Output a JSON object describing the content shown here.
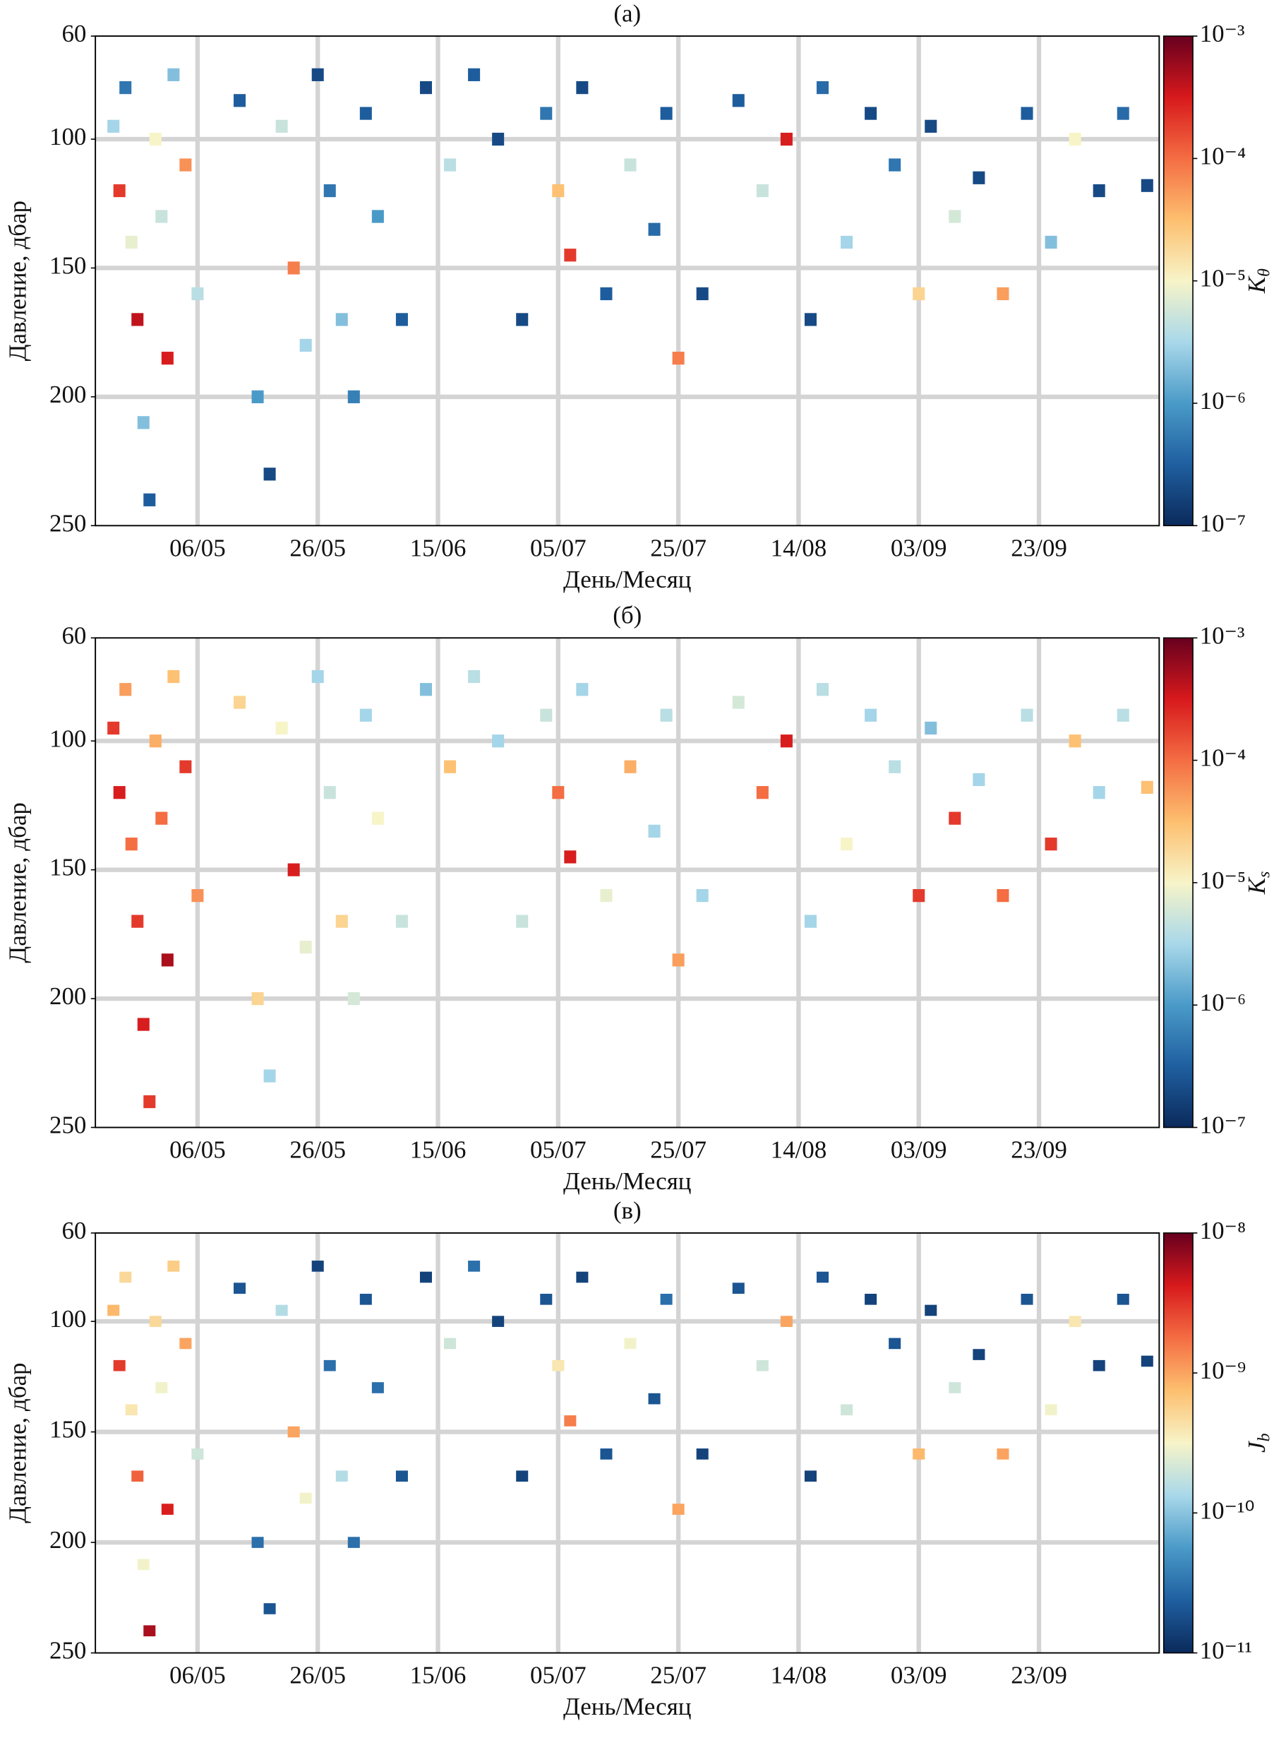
{
  "chart_data": [
    {
      "type": "heatmap",
      "title": "(а)",
      "x_label": "День/Месяц",
      "y_label": "Давление, дбар",
      "colorbar_label": "K",
      "colorbar_label_sub": "θ",
      "colorscale": "log",
      "colormap": [
        "#0b2a5b",
        "#1f5fa0",
        "#4a9ac8",
        "#a9d8ea",
        "#f7f4c8",
        "#fdbf6f",
        "#f46d43",
        "#d7191c",
        "#67001f"
      ],
      "xlim": [
        109,
        286
      ],
      "ylim": [
        60,
        250
      ],
      "y_inverted": true,
      "grid": true,
      "xticks": [
        {
          "value": 126,
          "label": "06/05"
        },
        {
          "value": 146,
          "label": "26/05"
        },
        {
          "value": 166,
          "label": "15/06"
        },
        {
          "value": 186,
          "label": "05/07"
        },
        {
          "value": 206,
          "label": "25/07"
        },
        {
          "value": 226,
          "label": "14/08"
        },
        {
          "value": 246,
          "label": "03/09"
        },
        {
          "value": 266,
          "label": "23/09"
        }
      ],
      "yticks": [
        60,
        100,
        150,
        200,
        250
      ],
      "clim": [
        1e-07,
        0.001
      ],
      "cticks": [
        {
          "value": 0.001,
          "label": "10⁻³"
        },
        {
          "value": 0.0001,
          "label": "10⁻⁴"
        },
        {
          "value": 1e-05,
          "label": "10⁻⁵"
        },
        {
          "value": 1e-06,
          "label": "10⁻⁶"
        },
        {
          "value": 1e-07,
          "label": "10⁻⁷"
        }
      ],
      "x": [
        112,
        113,
        114,
        115,
        116,
        117,
        118,
        119,
        120,
        121,
        122,
        124,
        126,
        133,
        136,
        138,
        140,
        142,
        144,
        146,
        148,
        150,
        152,
        154,
        156,
        160,
        164,
        168,
        172,
        176,
        180,
        184,
        186,
        188,
        190,
        194,
        198,
        202,
        204,
        206,
        210,
        216,
        220,
        224,
        228,
        230,
        234,
        238,
        242,
        246,
        248,
        252,
        256,
        260,
        264,
        268,
        272,
        276,
        280,
        284
      ],
      "y": [
        95,
        120,
        80,
        140,
        170,
        210,
        240,
        100,
        130,
        185,
        75,
        110,
        160,
        85,
        200,
        230,
        95,
        150,
        180,
        75,
        120,
        170,
        200,
        90,
        130,
        170,
        80,
        110,
        75,
        100,
        170,
        90,
        120,
        145,
        80,
        160,
        110,
        135,
        90,
        185,
        160,
        85,
        120,
        100,
        170,
        80,
        140,
        90,
        110,
        160,
        95,
        130,
        115,
        160,
        90,
        140,
        100,
        120,
        90,
        118
      ],
      "values": [
        3e-06,
        0.0002,
        5e-07,
        8e-06,
        0.0004,
        2e-06,
        3e-07,
        1e-05,
        5e-06,
        0.0003,
        2e-06,
        6e-05,
        4e-06,
        3e-07,
        1e-06,
        2e-07,
        5e-06,
        8e-05,
        3e-06,
        2e-07,
        5e-07,
        2e-06,
        6e-07,
        3e-07,
        1e-06,
        3e-07,
        2e-07,
        4e-06,
        3e-07,
        2e-07,
        2e-07,
        5e-07,
        3e-05,
        0.0002,
        2e-07,
        3e-07,
        5e-06,
        4e-07,
        3e-07,
        8e-05,
        2e-07,
        3e-07,
        5e-06,
        0.0003,
        2e-07,
        4e-07,
        3e-06,
        2e-07,
        5e-07,
        2e-05,
        2e-07,
        6e-06,
        2e-07,
        5e-05,
        3e-07,
        2e-06,
        1e-05,
        2e-07,
        4e-07,
        2e-07
      ]
    },
    {
      "type": "heatmap",
      "title": "(б)",
      "x_label": "День/Месяц",
      "y_label": "Давление, дбар",
      "colorbar_label": "K",
      "colorbar_label_sub": "s",
      "colorscale": "log",
      "colormap": [
        "#0b2a5b",
        "#1f5fa0",
        "#4a9ac8",
        "#a9d8ea",
        "#f7f4c8",
        "#fdbf6f",
        "#f46d43",
        "#d7191c",
        "#67001f"
      ],
      "xlim": [
        109,
        286
      ],
      "ylim": [
        60,
        250
      ],
      "y_inverted": true,
      "grid": true,
      "xticks": [
        {
          "value": 126,
          "label": "06/05"
        },
        {
          "value": 146,
          "label": "26/05"
        },
        {
          "value": 166,
          "label": "15/06"
        },
        {
          "value": 186,
          "label": "05/07"
        },
        {
          "value": 206,
          "label": "25/07"
        },
        {
          "value": 226,
          "label": "14/08"
        },
        {
          "value": 246,
          "label": "03/09"
        },
        {
          "value": 266,
          "label": "23/09"
        }
      ],
      "yticks": [
        60,
        100,
        150,
        200,
        250
      ],
      "clim": [
        1e-07,
        0.001
      ],
      "cticks": [
        {
          "value": 0.001,
          "label": "10⁻³"
        },
        {
          "value": 0.0001,
          "label": "10⁻⁴"
        },
        {
          "value": 1e-05,
          "label": "10⁻⁵"
        },
        {
          "value": 1e-06,
          "label": "10⁻⁶"
        },
        {
          "value": 1e-07,
          "label": "10⁻⁷"
        }
      ],
      "x": [
        112,
        113,
        114,
        115,
        116,
        117,
        118,
        119,
        120,
        121,
        122,
        124,
        126,
        133,
        136,
        138,
        140,
        142,
        144,
        146,
        148,
        150,
        152,
        154,
        156,
        160,
        164,
        168,
        172,
        176,
        180,
        184,
        186,
        188,
        190,
        194,
        198,
        202,
        204,
        206,
        210,
        216,
        220,
        224,
        228,
        230,
        234,
        238,
        242,
        246,
        248,
        252,
        256,
        260,
        264,
        268,
        272,
        276,
        280,
        284
      ],
      "y": [
        95,
        120,
        80,
        140,
        170,
        210,
        240,
        100,
        130,
        185,
        75,
        110,
        160,
        85,
        200,
        230,
        95,
        150,
        180,
        75,
        120,
        170,
        200,
        90,
        130,
        170,
        80,
        110,
        75,
        100,
        170,
        90,
        120,
        145,
        80,
        160,
        110,
        135,
        90,
        185,
        160,
        85,
        120,
        100,
        170,
        80,
        140,
        90,
        110,
        160,
        95,
        130,
        115,
        160,
        90,
        140,
        100,
        120,
        90,
        118
      ],
      "values": [
        0.0002,
        0.0003,
        5e-05,
        0.0001,
        0.0002,
        0.0003,
        0.0002,
        4e-05,
        0.0001,
        0.0005,
        3e-05,
        0.0002,
        6e-05,
        2e-05,
        2e-05,
        3e-06,
        1e-05,
        0.0003,
        8e-06,
        3e-06,
        5e-06,
        2e-05,
        6e-06,
        3e-06,
        1e-05,
        5e-06,
        2e-06,
        3e-05,
        4e-06,
        3e-06,
        5e-06,
        5e-06,
        0.0001,
        0.0003,
        3e-06,
        8e-06,
        4e-05,
        3e-06,
        4e-06,
        5e-05,
        3e-06,
        6e-06,
        0.0001,
        0.0003,
        3e-06,
        4e-06,
        1e-05,
        3e-06,
        4e-06,
        0.0002,
        2e-06,
        0.0002,
        3e-06,
        0.0001,
        4e-06,
        0.0002,
        3e-05,
        3e-06,
        4e-06,
        3e-05
      ]
    },
    {
      "type": "heatmap",
      "title": "(в)",
      "x_label": "День/Месяц",
      "y_label": "Давление, дбар",
      "colorbar_label": "J",
      "colorbar_label_sub": "b",
      "colorscale": "log",
      "colormap": [
        "#0b2a5b",
        "#1f5fa0",
        "#4a9ac8",
        "#a9d8ea",
        "#f7f4c8",
        "#fdbf6f",
        "#f46d43",
        "#d7191c",
        "#67001f"
      ],
      "xlim": [
        109,
        286
      ],
      "ylim": [
        60,
        250
      ],
      "y_inverted": true,
      "grid": true,
      "xticks": [
        {
          "value": 126,
          "label": "06/05"
        },
        {
          "value": 146,
          "label": "26/05"
        },
        {
          "value": 166,
          "label": "15/06"
        },
        {
          "value": 186,
          "label": "05/07"
        },
        {
          "value": 206,
          "label": "25/07"
        },
        {
          "value": 226,
          "label": "14/08"
        },
        {
          "value": 246,
          "label": "03/09"
        },
        {
          "value": 266,
          "label": "23/09"
        }
      ],
      "yticks": [
        60,
        100,
        150,
        200,
        250
      ],
      "clim": [
        1e-11,
        1e-08
      ],
      "cticks": [
        {
          "value": 1e-08,
          "label": "10⁻⁸"
        },
        {
          "value": 1e-09,
          "label": "10⁻⁹"
        },
        {
          "value": 1e-10,
          "label": "10⁻¹⁰"
        },
        {
          "value": 1e-11,
          "label": "10⁻¹¹"
        }
      ],
      "x": [
        112,
        113,
        114,
        115,
        116,
        117,
        118,
        119,
        120,
        121,
        122,
        124,
        126,
        133,
        136,
        138,
        140,
        142,
        144,
        146,
        148,
        150,
        152,
        154,
        156,
        160,
        164,
        168,
        172,
        176,
        180,
        184,
        186,
        188,
        190,
        194,
        198,
        202,
        204,
        206,
        210,
        216,
        220,
        224,
        228,
        230,
        234,
        238,
        242,
        246,
        248,
        252,
        256,
        260,
        264,
        268,
        272,
        276,
        280,
        284
      ],
      "y": [
        95,
        120,
        80,
        140,
        170,
        210,
        240,
        100,
        130,
        185,
        75,
        110,
        160,
        85,
        200,
        230,
        95,
        150,
        180,
        75,
        120,
        170,
        200,
        90,
        130,
        170,
        80,
        110,
        75,
        100,
        170,
        90,
        120,
        145,
        80,
        160,
        110,
        135,
        90,
        185,
        160,
        85,
        120,
        100,
        170,
        80,
        140,
        90,
        110,
        160,
        95,
        130,
        115,
        160,
        90,
        140,
        100,
        120,
        90,
        118
      ],
      "values": [
        8e-10,
        3e-09,
        5e-10,
        4e-10,
        2e-09,
        3e-10,
        6e-09,
        5e-10,
        3e-10,
        4e-09,
        6e-10,
        1e-09,
        2e-10,
        2e-11,
        3e-11,
        2e-11,
        1.5e-10,
        1e-09,
        3e-10,
        1.5e-11,
        3e-11,
        1.5e-10,
        3e-11,
        2e-11,
        3e-11,
        2e-11,
        1.5e-11,
        2e-10,
        3e-11,
        1.5e-11,
        1.5e-11,
        2e-11,
        4e-10,
        1.5e-09,
        1.5e-11,
        2e-11,
        3e-10,
        2e-11,
        3e-11,
        1e-09,
        1.5e-11,
        2e-11,
        2e-10,
        1e-09,
        1.5e-11,
        2e-11,
        2e-10,
        1.5e-11,
        2e-11,
        8e-10,
        1.5e-11,
        2e-10,
        1.5e-11,
        1e-09,
        2e-11,
        3e-10,
        4e-10,
        1.5e-11,
        2e-11,
        1.5e-11
      ]
    }
  ]
}
